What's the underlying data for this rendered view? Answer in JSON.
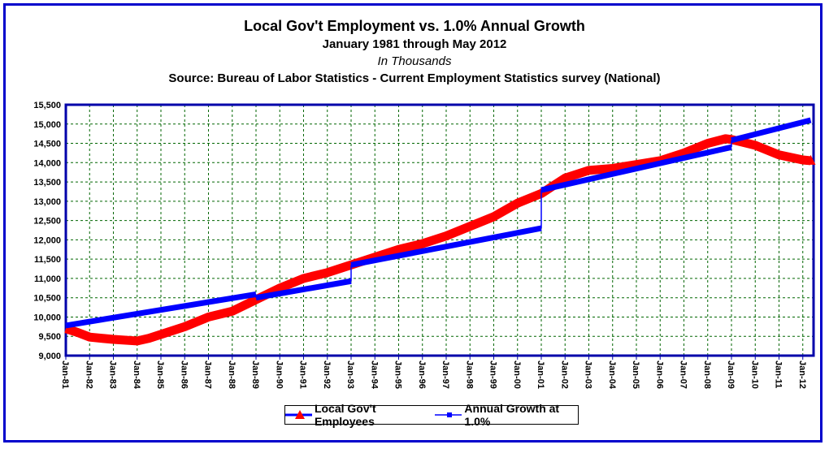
{
  "chart_data": {
    "type": "line",
    "title": "Local Gov't Employment vs. 1.0% Annual Growth",
    "subtitles": [
      "January 1981 through May 2012",
      "In Thousands",
      "Source: Bureau of Labor Statistics - Current Employment Statistics survey (National)"
    ],
    "ylim": [
      9000,
      15500
    ],
    "yticks": [
      "9,000",
      "9,500",
      "10,000",
      "10,500",
      "11,000",
      "11,500",
      "12,000",
      "12,500",
      "13,000",
      "13,500",
      "14,000",
      "14,500",
      "15,000",
      "15,500"
    ],
    "xticks": [
      "Jan-81",
      "Jan-82",
      "Jan-83",
      "Jan-84",
      "Jan-85",
      "Jan-86",
      "Jan-87",
      "Jan-88",
      "Jan-89",
      "Jan-90",
      "Jan-91",
      "Jan-92",
      "Jan-93",
      "Jan-94",
      "Jan-95",
      "Jan-96",
      "Jan-97",
      "Jan-98",
      "Jan-99",
      "Jan-00",
      "Jan-01",
      "Jan-02",
      "Jan-03",
      "Jan-04",
      "Jan-05",
      "Jan-06",
      "Jan-07",
      "Jan-08",
      "Jan-09",
      "Jan-10",
      "Jan-11",
      "Jan-12"
    ],
    "xrange": [
      "1981-01",
      "2012-05"
    ],
    "grid": true,
    "legend": "bottom",
    "colors": {
      "employees": "#ff0000",
      "growth": "#0000ff",
      "grid": "#006600",
      "axis": "#0000aa"
    },
    "series": [
      {
        "name": "Local Gov't Employees",
        "points": [
          [
            "1981-01",
            9700
          ],
          [
            "1981-07",
            9600
          ],
          [
            "1982-01",
            9480
          ],
          [
            "1983-01",
            9420
          ],
          [
            "1984-01",
            9380
          ],
          [
            "1984-07",
            9450
          ],
          [
            "1985-01",
            9550
          ],
          [
            "1986-01",
            9750
          ],
          [
            "1987-01",
            10000
          ],
          [
            "1988-01",
            10150
          ],
          [
            "1989-01",
            10450
          ],
          [
            "1990-01",
            10750
          ],
          [
            "1991-01",
            11000
          ],
          [
            "1992-01",
            11150
          ],
          [
            "1993-01",
            11350
          ],
          [
            "1994-01",
            11550
          ],
          [
            "1995-01",
            11750
          ],
          [
            "1996-01",
            11900
          ],
          [
            "1997-01",
            12100
          ],
          [
            "1998-01",
            12350
          ],
          [
            "1999-01",
            12600
          ],
          [
            "2000-01",
            12950
          ],
          [
            "2001-01",
            13200
          ],
          [
            "2002-01",
            13600
          ],
          [
            "2003-01",
            13800
          ],
          [
            "2004-01",
            13850
          ],
          [
            "2005-01",
            13950
          ],
          [
            "2006-01",
            14050
          ],
          [
            "2007-01",
            14250
          ],
          [
            "2008-01",
            14500
          ],
          [
            "2008-10",
            14620
          ],
          [
            "2009-01",
            14600
          ],
          [
            "2010-01",
            14450
          ],
          [
            "2011-01",
            14200
          ],
          [
            "2012-01",
            14070
          ],
          [
            "2012-05",
            14050
          ]
        ]
      },
      {
        "name": "Annual Growth at 1.0%",
        "segments": [
          [
            [
              "1981-01",
              9780
            ],
            [
              "1989-01",
              10590
            ]
          ],
          [
            [
              "1989-01",
              10500
            ],
            [
              "1993-01",
              10930
            ]
          ],
          [
            [
              "1993-01",
              11350
            ],
            [
              "2001-01",
              12300
            ]
          ],
          [
            [
              "2001-01",
              13290
            ],
            [
              "2009-01",
              14400
            ]
          ],
          [
            [
              "2009-01",
              14580
            ],
            [
              "2012-05",
              15100
            ]
          ]
        ]
      }
    ]
  }
}
